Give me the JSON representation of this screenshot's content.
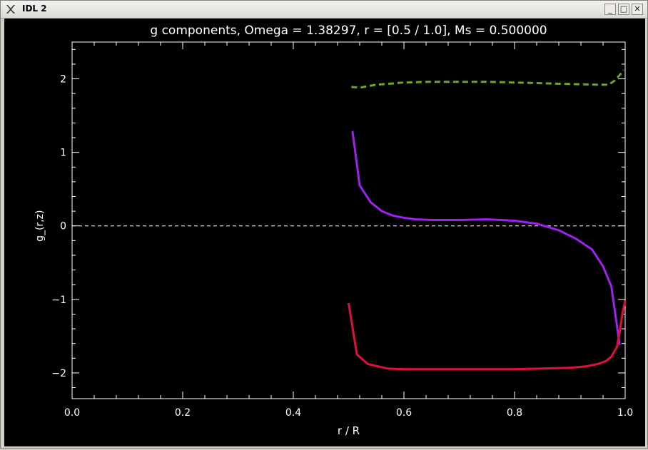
{
  "window": {
    "title": "IDL 2",
    "buttons": {
      "minimize": "_",
      "maximize": "□",
      "close": "✕"
    },
    "icons": {
      "app": "x-logo-icon"
    }
  },
  "chart_data": {
    "type": "line",
    "title": "g components, Omega =  1.38297, r = [0.5 / 1.0], Ms =  0.500000",
    "xlabel": "r / R",
    "ylabel": "g_(r,z)",
    "xlim": [
      0.0,
      1.0
    ],
    "ylim": [
      -2.35,
      2.5
    ],
    "xticks": [
      0.0,
      0.2,
      0.4,
      0.6,
      0.8,
      1.0
    ],
    "xtick_labels": [
      "0.0",
      "0.2",
      "0.4",
      "0.6",
      "0.8",
      "1.0"
    ],
    "yticks": [
      -2,
      -1,
      0,
      1,
      2
    ],
    "ytick_labels": [
      "−2",
      "−1",
      "0",
      "1",
      "2"
    ],
    "background": "#000000",
    "axis_color": "#ffffff",
    "zero_line": {
      "y": 0,
      "style": "dashed",
      "color": "#ffffff"
    },
    "series": [
      {
        "color": "#6aa81e",
        "style": "dashed",
        "x": [
          0.505,
          0.52,
          0.55,
          0.6,
          0.65,
          0.7,
          0.75,
          0.8,
          0.85,
          0.9,
          0.95,
          0.97,
          0.98,
          0.99,
          0.997
        ],
        "y": [
          1.89,
          1.88,
          1.92,
          1.95,
          1.96,
          1.96,
          1.96,
          1.95,
          1.94,
          1.93,
          1.92,
          1.92,
          1.97,
          2.05,
          2.12
        ]
      },
      {
        "color": "#a020f0",
        "style": "solid",
        "x": [
          0.507,
          0.52,
          0.54,
          0.56,
          0.58,
          0.6,
          0.62,
          0.65,
          0.7,
          0.75,
          0.8,
          0.84,
          0.88,
          0.91,
          0.94,
          0.96,
          0.975,
          0.985,
          0.99
        ],
        "y": [
          1.29,
          0.55,
          0.32,
          0.2,
          0.14,
          0.11,
          0.09,
          0.08,
          0.08,
          0.09,
          0.07,
          0.03,
          -0.06,
          -0.17,
          -0.32,
          -0.55,
          -0.82,
          -1.35,
          -1.62
        ]
      },
      {
        "color": "#e0103c",
        "style": "solid",
        "x": [
          0.5,
          0.515,
          0.535,
          0.57,
          0.6,
          0.65,
          0.7,
          0.75,
          0.8,
          0.85,
          0.9,
          0.93,
          0.95,
          0.965,
          0.975,
          0.985,
          0.99,
          0.995,
          1.0
        ],
        "y": [
          -1.05,
          -1.75,
          -1.88,
          -1.94,
          -1.95,
          -1.95,
          -1.95,
          -1.95,
          -1.95,
          -1.94,
          -1.93,
          -1.91,
          -1.88,
          -1.84,
          -1.78,
          -1.65,
          -1.45,
          -1.2,
          -1.02
        ]
      }
    ]
  }
}
